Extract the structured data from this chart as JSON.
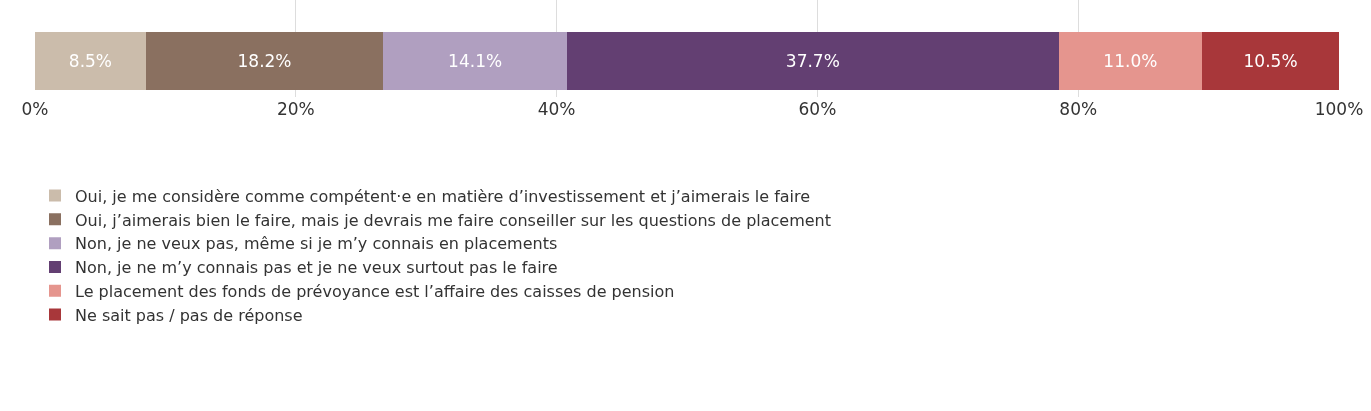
{
  "chart_data": {
    "type": "bar",
    "orientation": "horizontal",
    "stacked": true,
    "categories": [
      null
    ],
    "series": [
      {
        "name": "Oui, je me considère comme compétent·e en matière d’investissement et j’aimerais le faire",
        "color": "#cbbcab",
        "values": [
          8.5
        ],
        "value_labels": [
          "8.5%"
        ]
      },
      {
        "name": "Oui, j’aimerais bien le faire, mais je devrais me faire conseiller sur les questions de placement",
        "color": "#8a7060",
        "values": [
          18.2
        ],
        "value_labels": [
          "18.2%"
        ]
      },
      {
        "name": "Non, je ne veux pas, même si je m’y connais en placements",
        "color": "#b09fc0",
        "values": [
          14.1
        ],
        "value_labels": [
          "14.1%"
        ]
      },
      {
        "name": "Non, je ne m’y connais pas et je ne veux surtout pas le faire",
        "color": "#633f72",
        "values": [
          37.7
        ],
        "value_labels": [
          "37.7%"
        ]
      },
      {
        "name": "Le placement des fonds de prévoyance est l’affaire des caisses de pension",
        "color": "#e5958e",
        "values": [
          11.0
        ],
        "value_labels": [
          "11.0%"
        ]
      },
      {
        "name": "Ne sait pas / pas de réponse",
        "color": "#a8373a",
        "values": [
          10.5
        ],
        "value_labels": [
          "10.5%"
        ]
      }
    ],
    "xlim": [
      0,
      100
    ],
    "xticks": [
      {
        "value": 0,
        "label": "0%"
      },
      {
        "value": 20,
        "label": "20%"
      },
      {
        "value": 40,
        "label": "40%"
      },
      {
        "value": 60,
        "label": "60%"
      },
      {
        "value": 80,
        "label": "80%"
      },
      {
        "value": 100,
        "label": "100%"
      }
    ],
    "grid": "x",
    "legend": "bottom",
    "tick_labels": "x"
  }
}
